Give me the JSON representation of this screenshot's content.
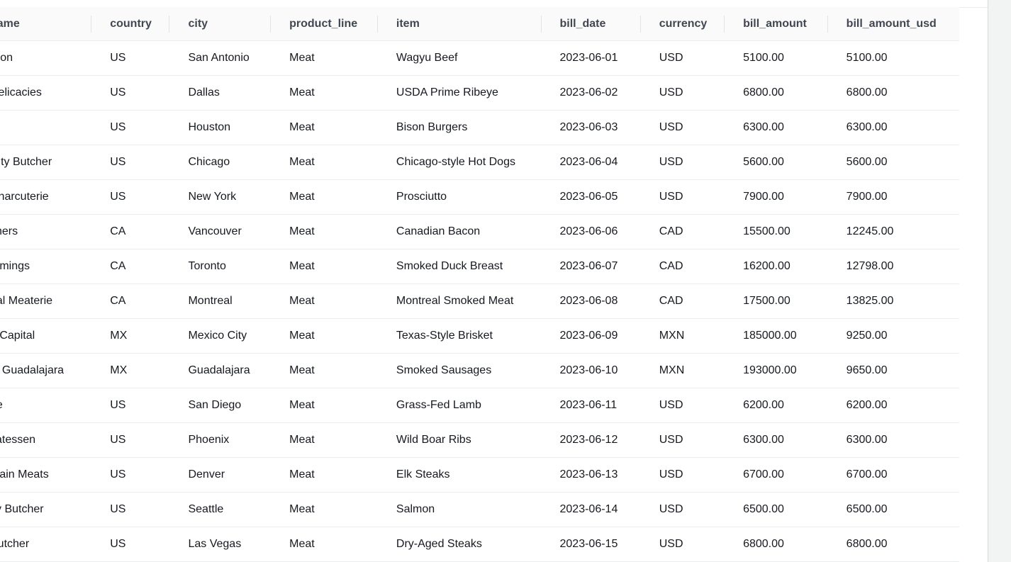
{
  "table": {
    "columns": [
      "name",
      "country",
      "city",
      "product_line",
      "item",
      "bill_date",
      "currency",
      "bill_amount",
      "bill_amount_usd"
    ],
    "rows": [
      [
        "aron",
        "US",
        "San Antonio",
        "Meat",
        "Wagyu Beef",
        "2023-06-01",
        "USD",
        "5100.00",
        "5100.00"
      ],
      [
        "Delicacies",
        "US",
        "Dallas",
        "Meat",
        "USDA Prime Ribeye",
        "2023-06-02",
        "USD",
        "6800.00",
        "6800.00"
      ],
      [
        "",
        "US",
        "Houston",
        "Meat",
        "Bison Burgers",
        "2023-06-03",
        "USD",
        "6300.00",
        "6300.00"
      ],
      [
        " City Butcher",
        "US",
        "Chicago",
        "Meat",
        "Chicago-style Hot Dogs",
        "2023-06-04",
        "USD",
        "5600.00",
        "5600.00"
      ],
      [
        " Charcuterie",
        "US",
        "New York",
        "Meat",
        "Prosciutto",
        "2023-06-05",
        "USD",
        "7900.00",
        "7900.00"
      ],
      [
        "chers",
        "CA",
        "Vancouver",
        "Meat",
        "Canadian Bacon",
        "2023-06-06",
        "CAD",
        "15500.00",
        "12245.00"
      ],
      [
        "mmings",
        "CA",
        "Toronto",
        "Meat",
        "Smoked Duck Breast",
        "2023-06-07",
        "CAD",
        "16200.00",
        "12798.00"
      ],
      [
        "eal Meaterie",
        "CA",
        "Montreal",
        "Meat",
        "Montreal Smoked Meat",
        "2023-06-08",
        "CAD",
        "17500.00",
        "13825.00"
      ],
      [
        "a Capital",
        "MX",
        "Mexico City",
        "Meat",
        "Texas-Style Brisket",
        "2023-06-09",
        "MXN",
        "185000.00",
        "9250.00"
      ],
      [
        "le Guadalajara",
        "MX",
        "Guadalajara",
        "Meat",
        "Smoked Sausages",
        "2023-06-10",
        "MXN",
        "193000.00",
        "9650.00"
      ],
      [
        "ne",
        "US",
        "San Diego",
        "Meat",
        "Grass-Fed Lamb",
        "2023-06-11",
        "USD",
        "6200.00",
        "6200.00"
      ],
      [
        "catessen",
        "US",
        "Phoenix",
        "Meat",
        "Wild Boar Ribs",
        "2023-06-12",
        "USD",
        "6300.00",
        "6300.00"
      ],
      [
        "ntain Meats",
        "US",
        "Denver",
        "Meat",
        "Elk Steaks",
        "2023-06-13",
        "USD",
        "6700.00",
        "6700.00"
      ],
      [
        "ity Butcher",
        "US",
        "Seattle",
        "Meat",
        "Salmon",
        "2023-06-14",
        "USD",
        "6500.00",
        "6500.00"
      ],
      [
        "Butcher",
        "US",
        "Las Vegas",
        "Meat",
        "Dry-Aged Steaks",
        "2023-06-15",
        "USD",
        "6800.00",
        "6800.00"
      ]
    ]
  }
}
